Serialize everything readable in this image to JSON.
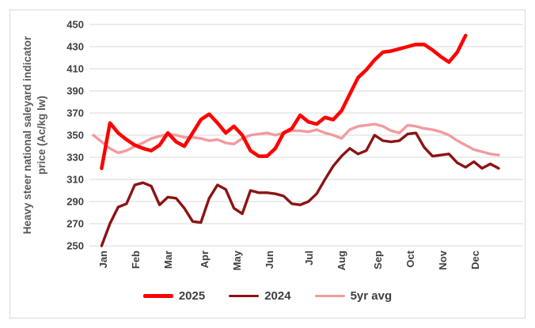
{
  "chart_data": {
    "type": "line",
    "title": "",
    "ylabel_lines": [
      "Heavy steer national saleyard indicator",
      "price (Ac/kg lw)"
    ],
    "ylim": [
      250,
      450
    ],
    "ytick_step": 20,
    "yticks": [
      450,
      430,
      410,
      390,
      370,
      350,
      330,
      310,
      290,
      270,
      250
    ],
    "x_unit": "week of year",
    "months": [
      "Jan",
      "Feb",
      "Mar",
      "Apr",
      "May",
      "Jun",
      "Jul",
      "Aug",
      "Sep",
      "Oct",
      "Nov",
      "Dec"
    ],
    "grid": "horizontal-only",
    "legend_position": "bottom-center",
    "gridline_color": "#d9d9d9",
    "tick_color": "#3f3f3f",
    "axis_title_color": "#595959",
    "legend_text_color": "#404040",
    "series": [
      {
        "name": "2025",
        "color": "#ff0000",
        "start_week": 1,
        "values": [
          320,
          361,
          352,
          346,
          341,
          338,
          336,
          341,
          352,
          344,
          340,
          352,
          364,
          369,
          361,
          352,
          358,
          350,
          336,
          331,
          331,
          338,
          352,
          356,
          368,
          362,
          360,
          366,
          364,
          372,
          387,
          402,
          409,
          418,
          425,
          426,
          428,
          430,
          432,
          432,
          427,
          421,
          416,
          425,
          440
        ]
      },
      {
        "name": "2024",
        "color": "#8b1414",
        "start_week": 1,
        "values": [
          250,
          270,
          285,
          288,
          305,
          307,
          304,
          287,
          294,
          293,
          284,
          272,
          271,
          293,
          305,
          301,
          284,
          279,
          300,
          298,
          298,
          297,
          295,
          288,
          287,
          290,
          297,
          310,
          322,
          331,
          338,
          333,
          336,
          350,
          345,
          344,
          345,
          351,
          352,
          339,
          331,
          332,
          333,
          325,
          321,
          326,
          320,
          324,
          320
        ]
      },
      {
        "name": "5yr avg",
        "color": "#f29b9e",
        "start_week": 0,
        "values": [
          350,
          344,
          338,
          334,
          336,
          340,
          343,
          347,
          349,
          351,
          350,
          348,
          348,
          347,
          345,
          346,
          343,
          342,
          347,
          350,
          351,
          352,
          350,
          352,
          354,
          354,
          353,
          355,
          352,
          350,
          347,
          355,
          358,
          359,
          360,
          358,
          354,
          352,
          359,
          358,
          356,
          355,
          353,
          350,
          345,
          341,
          337,
          335,
          333,
          332
        ]
      }
    ]
  }
}
